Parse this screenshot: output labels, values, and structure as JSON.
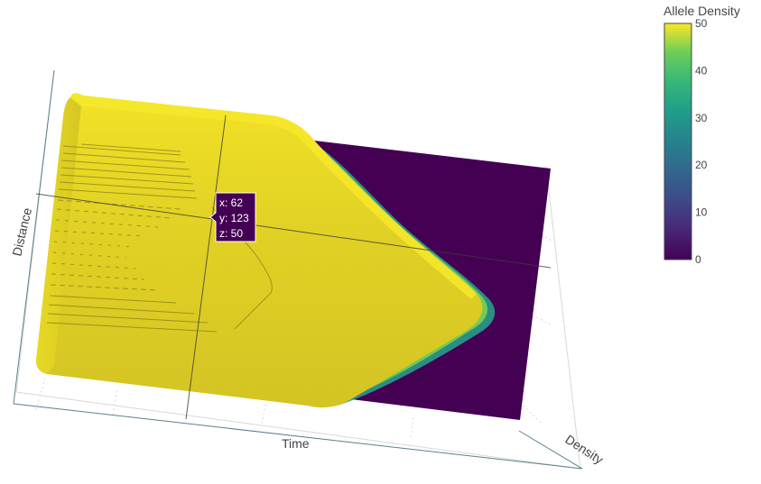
{
  "chart_data": {
    "type": "surface",
    "axes": {
      "x": {
        "label": "Time"
      },
      "y": {
        "label": "Distance"
      },
      "z": {
        "label": "Density"
      }
    },
    "colorbar": {
      "title": "Allele Density",
      "colorscale": "viridis",
      "range": [
        0,
        50
      ],
      "tick_labels": [
        "0",
        "10",
        "20",
        "30",
        "40",
        "50"
      ],
      "tick_values": [
        0,
        10,
        20,
        30,
        40,
        50
      ]
    },
    "surface_levels": {
      "max": 50,
      "min": 0
    },
    "hover": {
      "x_line": "x: 62",
      "y_line": "y: 123",
      "z_line": "z: 50"
    }
  }
}
